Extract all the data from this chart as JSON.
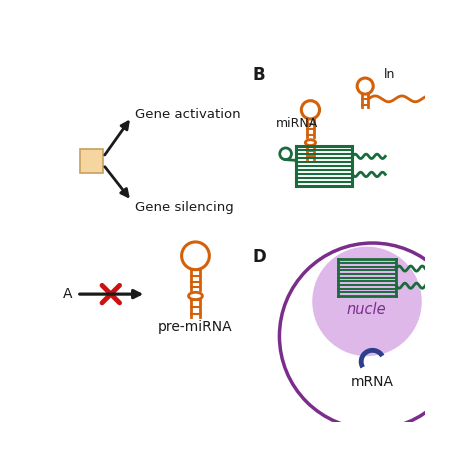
{
  "bg_color": "#ffffff",
  "panel_B_label": "B",
  "panel_D_label": "D",
  "gene_activation_text": "Gene activation",
  "gene_silencing_text": "Gene silencing",
  "mirna_text": "miRNA",
  "lncrna_text": "ln",
  "pre_mirna_text": "pre-miRNA",
  "miRNA_partial": "A",
  "nucleus_text": "nucle",
  "mrna_text": "mRNA",
  "orange_color": "#D4600A",
  "dark_green_color": "#1a6b3c",
  "purple_color": "#7B2D8B",
  "light_purple_color": "#DDB8E8",
  "red_color": "#cc1111",
  "tan_color": "#F5D5A0",
  "tan_border_color": "#c8a060",
  "black_color": "#1a1a1a",
  "navy_color": "#2c3e8c"
}
